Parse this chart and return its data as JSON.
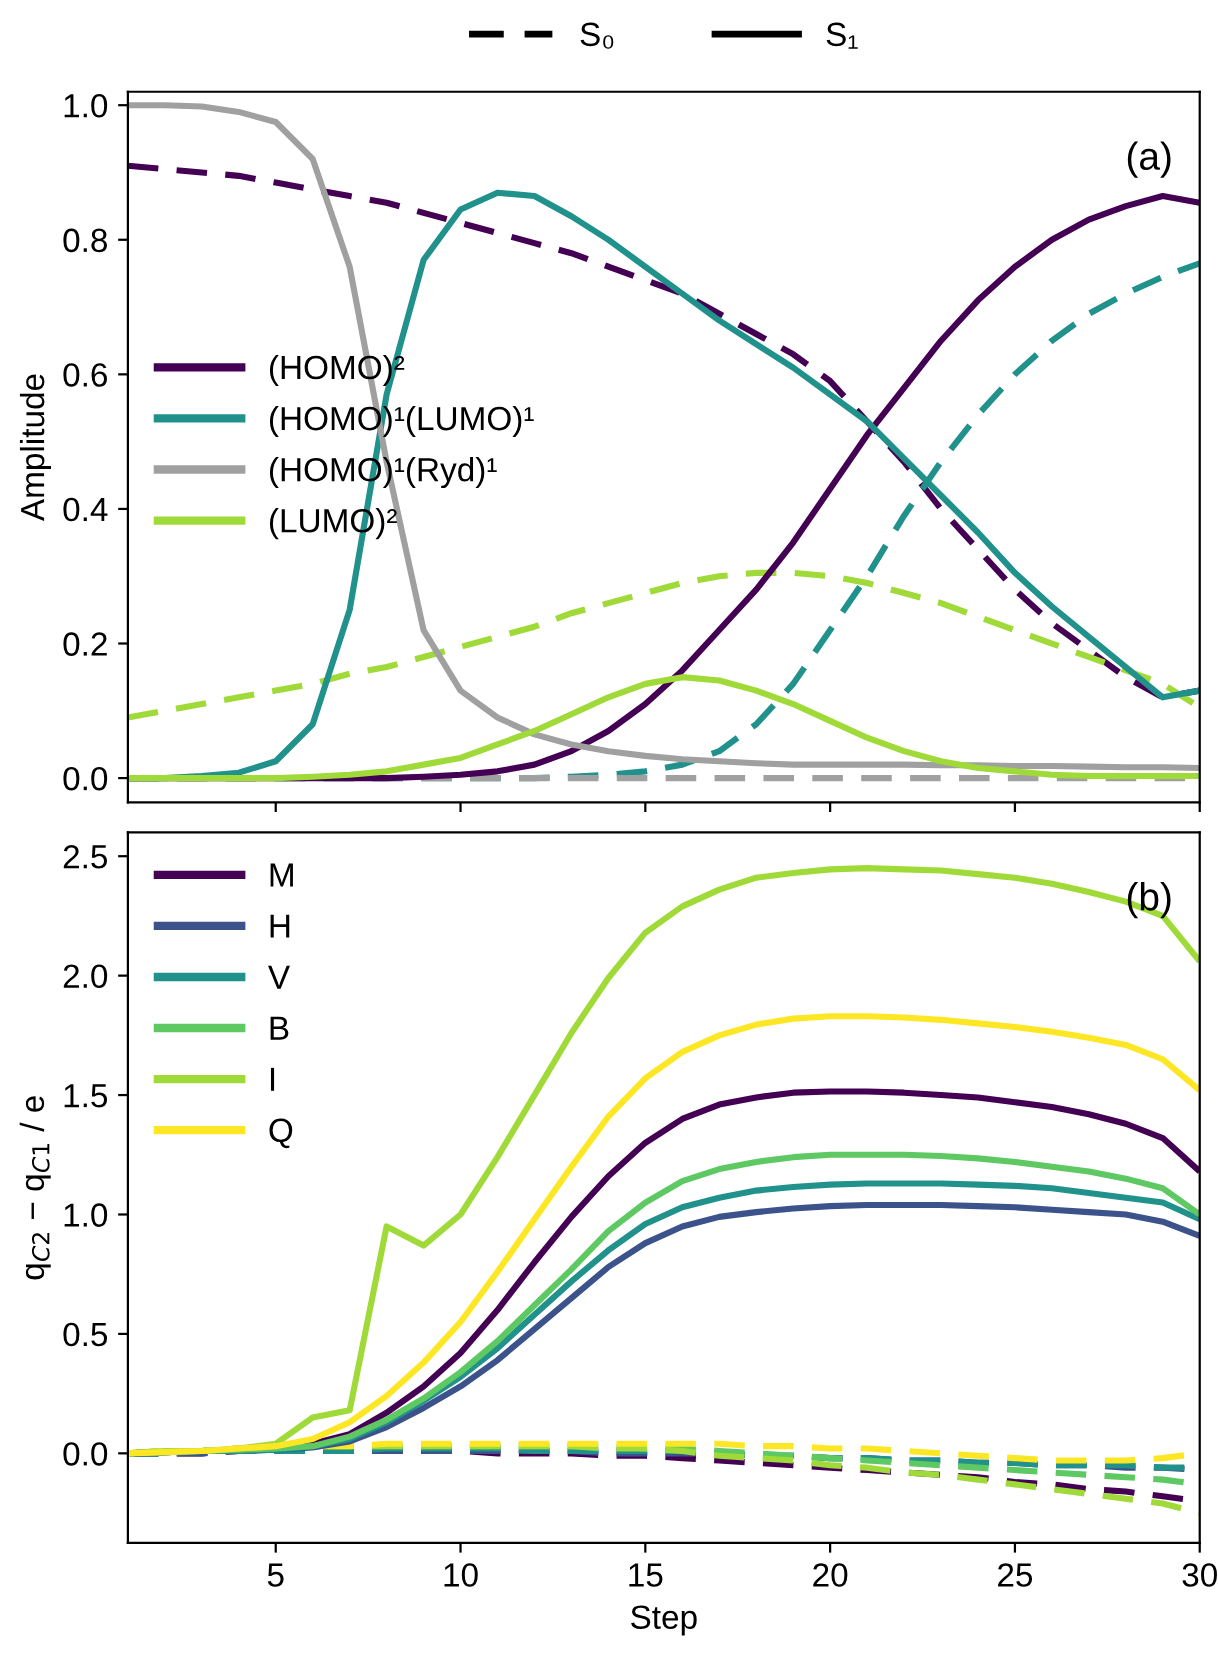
{
  "chart_data": [
    {
      "type": "line",
      "ylabel": "Amplitude",
      "annotations": [
        "(a)"
      ],
      "legend": "center left",
      "grid": false,
      "tick_labels": "y",
      "x": [
        1,
        2,
        3,
        4,
        5,
        6,
        7,
        8,
        9,
        10,
        11,
        12,
        13,
        14,
        15,
        16,
        17,
        18,
        19,
        20,
        21,
        22,
        23,
        24,
        25,
        26,
        27,
        28,
        29,
        30
      ],
      "xlim": [
        1,
        30
      ],
      "xticks": [
        {
          "value": 5,
          "label": null
        },
        {
          "value": 10,
          "label": null
        },
        {
          "value": 15,
          "label": null
        },
        {
          "value": 20,
          "label": null
        },
        {
          "value": 25,
          "label": null
        },
        {
          "value": 30,
          "label": null
        }
      ],
      "ylim": [
        -0.036,
        1.02
      ],
      "yticks": [
        {
          "value": 0,
          "label": "0.0"
        },
        0.2,
        0.4,
        0.6,
        0.8,
        {
          "value": 1,
          "label": "1.0"
        }
      ],
      "series": [
        {
          "name": "S₀",
          "color": "#000000",
          "line_style": "dashed",
          "values": [
            null,
            null,
            null,
            null,
            null,
            null,
            null,
            null,
            null,
            null,
            null,
            null,
            null,
            null,
            null,
            null,
            null,
            null,
            null,
            null,
            null,
            null,
            null,
            null,
            null,
            null,
            null,
            null,
            null,
            null
          ]
        },
        {
          "name": "S₁",
          "color": "#000000",
          "line_style": "solid",
          "values": [
            null,
            null,
            null,
            null,
            null,
            null,
            null,
            null,
            null,
            null,
            null,
            null,
            null,
            null,
            null,
            null,
            null,
            null,
            null,
            null,
            null,
            null,
            null,
            null,
            null,
            null,
            null,
            null,
            null,
            null
          ]
        },
        {
          "color": "#440154",
          "line_style": "dashed",
          "values": [
            0.91,
            0.905,
            0.9,
            0.895,
            0.885,
            0.875,
            0.865,
            0.855,
            0.84,
            0.825,
            0.81,
            0.795,
            0.78,
            0.76,
            0.74,
            0.72,
            0.69,
            0.66,
            0.63,
            0.59,
            0.53,
            0.47,
            0.4,
            0.34,
            0.28,
            0.23,
            0.19,
            0.15,
            0.12,
            0.13
          ]
        },
        {
          "color": "#21918c",
          "line_style": "dashed",
          "values": [
            0,
            0,
            0,
            0,
            0,
            0,
            0,
            0,
            0,
            0,
            0,
            0,
            0.002,
            0.005,
            0.01,
            0.02,
            0.04,
            0.08,
            0.14,
            0.22,
            0.3,
            0.39,
            0.47,
            0.54,
            0.6,
            0.65,
            0.69,
            0.72,
            0.745,
            0.765
          ]
        },
        {
          "color": "#a0a0a0",
          "line_style": "dashed",
          "values": [
            0,
            0,
            0,
            0,
            0,
            0,
            0,
            0,
            0,
            0,
            0,
            0,
            0,
            0,
            0,
            0,
            0,
            0,
            0,
            0,
            0,
            0,
            0,
            0,
            0,
            0,
            0,
            0,
            0,
            0
          ]
        },
        {
          "color": "#a0da39",
          "line_style": "dashed",
          "values": [
            0.09,
            0.1,
            0.11,
            0.12,
            0.13,
            0.14,
            0.155,
            0.165,
            0.18,
            0.195,
            0.21,
            0.225,
            0.245,
            0.26,
            0.275,
            0.29,
            0.3,
            0.305,
            0.305,
            0.3,
            0.29,
            0.275,
            0.26,
            0.24,
            0.22,
            0.2,
            0.18,
            0.16,
            0.14,
            0.105
          ]
        },
        {
          "name": "(HOMO)²",
          "color": "#440154",
          "line_style": "solid",
          "values": [
            0,
            0,
            0,
            0,
            0,
            0,
            0,
            0,
            0.002,
            0.005,
            0.01,
            0.02,
            0.04,
            0.07,
            0.11,
            0.16,
            0.22,
            0.28,
            0.35,
            0.43,
            0.51,
            0.58,
            0.65,
            0.71,
            0.76,
            0.8,
            0.83,
            0.85,
            0.865,
            0.855
          ]
        },
        {
          "name": "(HOMO)¹(LUMO)¹",
          "color": "#21918c",
          "line_style": "solid",
          "values": [
            0,
            0,
            0.003,
            0.008,
            0.025,
            0.08,
            0.25,
            0.57,
            0.77,
            0.845,
            0.87,
            0.865,
            0.835,
            0.8,
            0.76,
            0.72,
            0.68,
            0.645,
            0.61,
            0.57,
            0.53,
            0.475,
            0.42,
            0.365,
            0.305,
            0.255,
            0.21,
            0.165,
            0.12,
            0.13
          ]
        },
        {
          "name": "(HOMO)¹(Ryd)¹",
          "color": "#a0a0a0",
          "line_style": "solid",
          "values": [
            1,
            1,
            0.998,
            0.99,
            0.975,
            0.92,
            0.76,
            0.47,
            0.22,
            0.13,
            0.09,
            0.065,
            0.05,
            0.04,
            0.033,
            0.028,
            0.025,
            0.022,
            0.02,
            0.02,
            0.02,
            0.02,
            0.019,
            0.019,
            0.018,
            0.018,
            0.017,
            0.016,
            0.016,
            0.015
          ]
        },
        {
          "name": "(LUMO)²",
          "color": "#a0da39",
          "line_style": "solid",
          "values": [
            0,
            0,
            0,
            0,
            0,
            0.002,
            0.005,
            0.01,
            0.02,
            0.03,
            0.05,
            0.07,
            0.095,
            0.12,
            0.14,
            0.15,
            0.145,
            0.13,
            0.11,
            0.085,
            0.06,
            0.04,
            0.025,
            0.015,
            0.01,
            0.005,
            0.003,
            0.003,
            0.003,
            0.003
          ]
        }
      ]
    },
    {
      "type": "line",
      "xlabel": "Step",
      "ylabel": "q$_{C2}$ − q$_{C1}$ / e",
      "annotations": [
        "(b)"
      ],
      "legend": "top left",
      "grid": false,
      "x": [
        1,
        2,
        3,
        4,
        5,
        6,
        7,
        8,
        9,
        10,
        11,
        12,
        13,
        14,
        15,
        16,
        17,
        18,
        19,
        20,
        21,
        22,
        23,
        24,
        25,
        26,
        27,
        28,
        29,
        30
      ],
      "xlim": [
        1,
        30
      ],
      "xticks": [
        5,
        10,
        15,
        20,
        25,
        30
      ],
      "ylim": [
        -0.375,
        2.6
      ],
      "yticks": [
        {
          "value": 0,
          "label": "0.0"
        },
        0.5,
        {
          "value": 1,
          "label": "1.0"
        },
        1.5,
        {
          "value": 2,
          "label": "2.0"
        },
        2.5
      ],
      "series": [
        {
          "color": "#440154",
          "line_style": "dashed",
          "values": [
            0,
            0,
            0,
            0.01,
            0.01,
            0.01,
            0.01,
            0.01,
            0.01,
            0.01,
            0,
            0,
            0,
            -0.01,
            -0.01,
            -0.02,
            -0.03,
            -0.04,
            -0.05,
            -0.06,
            -0.07,
            -0.08,
            -0.09,
            -0.1,
            -0.12,
            -0.13,
            -0.15,
            -0.16,
            -0.18,
            -0.2
          ]
        },
        {
          "color": "#3b528b",
          "line_style": "dashed",
          "values": [
            0,
            0,
            0,
            0.01,
            0.01,
            0.01,
            0.01,
            0.01,
            0.01,
            0.01,
            0.01,
            0.01,
            0.01,
            0,
            0,
            0,
            0,
            -0.01,
            -0.01,
            -0.02,
            -0.02,
            -0.03,
            -0.03,
            -0.04,
            -0.04,
            -0.05,
            -0.05,
            -0.06,
            -0.06,
            -0.07
          ]
        },
        {
          "color": "#21918c",
          "line_style": "dashed",
          "values": [
            0,
            0,
            0.01,
            0.01,
            0.01,
            0.01,
            0.01,
            0.02,
            0.02,
            0.02,
            0.02,
            0.01,
            0.01,
            0.01,
            0.01,
            0.01,
            0,
            -0.01,
            -0.01,
            -0.02,
            -0.02,
            -0.03,
            -0.03,
            -0.04,
            -0.04,
            -0.05,
            -0.05,
            -0.05,
            -0.06,
            -0.06
          ]
        },
        {
          "color": "#5ec962",
          "line_style": "dashed",
          "values": [
            0,
            0.01,
            0.01,
            0.02,
            0.02,
            0.03,
            0.03,
            0.03,
            0.03,
            0.03,
            0.03,
            0.03,
            0.03,
            0.03,
            0.02,
            0.02,
            0.01,
            0,
            -0.01,
            -0.02,
            -0.03,
            -0.04,
            -0.05,
            -0.06,
            -0.07,
            -0.08,
            -0.09,
            -0.1,
            -0.11,
            -0.13
          ]
        },
        {
          "color": "#a0da39",
          "line_style": "dashed",
          "values": [
            0,
            0.01,
            0.01,
            0.02,
            0.02,
            0.03,
            0.03,
            0.03,
            0.03,
            0.03,
            0.03,
            0.03,
            0.03,
            0.02,
            0.02,
            0.01,
            -0.01,
            -0.02,
            -0.03,
            -0.05,
            -0.06,
            -0.08,
            -0.09,
            -0.11,
            -0.13,
            -0.15,
            -0.17,
            -0.19,
            -0.21,
            -0.25
          ]
        },
        {
          "color": "#fde725",
          "line_style": "dashed",
          "values": [
            0,
            0.01,
            0.01,
            0.02,
            0.02,
            0.03,
            0.03,
            0.04,
            0.04,
            0.04,
            0.04,
            0.04,
            0.04,
            0.04,
            0.04,
            0.04,
            0.04,
            0.03,
            0.03,
            0.02,
            0.02,
            0.01,
            0,
            -0.01,
            -0.02,
            -0.03,
            -0.03,
            -0.03,
            -0.02,
            0
          ]
        },
        {
          "name": "M",
          "color": "#440154",
          "line_style": "solid",
          "values": [
            0,
            0.005,
            0.01,
            0.015,
            0.02,
            0.04,
            0.08,
            0.17,
            0.28,
            0.42,
            0.6,
            0.8,
            0.99,
            1.16,
            1.3,
            1.4,
            1.46,
            1.49,
            1.51,
            1.515,
            1.515,
            1.51,
            1.5,
            1.49,
            1.47,
            1.45,
            1.42,
            1.38,
            1.32,
            1.18
          ]
        },
        {
          "name": "H",
          "color": "#3b528b",
          "line_style": "solid",
          "values": [
            0,
            0.005,
            0.01,
            0.01,
            0.015,
            0.025,
            0.05,
            0.11,
            0.19,
            0.28,
            0.39,
            0.52,
            0.65,
            0.78,
            0.88,
            0.95,
            0.99,
            1.01,
            1.025,
            1.035,
            1.04,
            1.04,
            1.04,
            1.035,
            1.03,
            1.02,
            1.01,
            1,
            0.97,
            0.91
          ]
        },
        {
          "name": "V",
          "color": "#21918c",
          "line_style": "solid",
          "values": [
            0,
            0.005,
            0.01,
            0.01,
            0.015,
            0.03,
            0.06,
            0.13,
            0.22,
            0.32,
            0.44,
            0.58,
            0.72,
            0.85,
            0.96,
            1.03,
            1.07,
            1.1,
            1.115,
            1.125,
            1.13,
            1.13,
            1.13,
            1.125,
            1.12,
            1.11,
            1.09,
            1.07,
            1.05,
            0.98
          ]
        },
        {
          "name": "B",
          "color": "#5ec962",
          "line_style": "solid",
          "values": [
            0,
            0.005,
            0.01,
            0.015,
            0.02,
            0.03,
            0.07,
            0.14,
            0.23,
            0.34,
            0.47,
            0.62,
            0.77,
            0.93,
            1.05,
            1.14,
            1.19,
            1.22,
            1.24,
            1.25,
            1.25,
            1.25,
            1.245,
            1.235,
            1.22,
            1.2,
            1.18,
            1.15,
            1.11,
            1
          ]
        },
        {
          "name": "I",
          "color": "#a0da39",
          "line_style": "solid",
          "values": [
            0,
            0.01,
            0.01,
            0.02,
            0.04,
            0.15,
            0.18,
            0.95,
            0.87,
            1,
            1.24,
            1.5,
            1.76,
            1.99,
            2.18,
            2.29,
            2.36,
            2.41,
            2.43,
            2.445,
            2.45,
            2.445,
            2.44,
            2.425,
            2.41,
            2.385,
            2.35,
            2.31,
            2.25,
            2.06
          ]
        },
        {
          "name": "Q",
          "color": "#fde725",
          "line_style": "solid",
          "values": [
            0,
            0.005,
            0.01,
            0.02,
            0.03,
            0.06,
            0.13,
            0.24,
            0.38,
            0.55,
            0.76,
            0.98,
            1.2,
            1.41,
            1.57,
            1.68,
            1.75,
            1.795,
            1.82,
            1.83,
            1.83,
            1.825,
            1.815,
            1.8,
            1.785,
            1.765,
            1.74,
            1.71,
            1.65,
            1.52
          ]
        }
      ]
    }
  ]
}
